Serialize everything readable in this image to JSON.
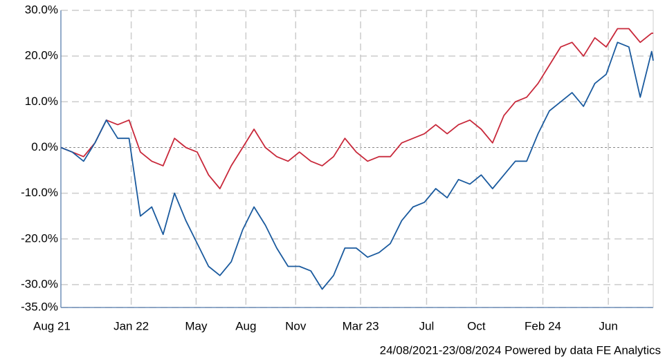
{
  "chart_data": {
    "type": "line",
    "caption": "24/08/2021-23/08/2024 Powered by data FE Analytics",
    "x": [
      "2021-08-24",
      "2021-09-14",
      "2021-10-05",
      "2021-10-26",
      "2021-11-16",
      "2021-12-07",
      "2021-12-28",
      "2022-01-18",
      "2022-02-08",
      "2022-03-01",
      "2022-03-22",
      "2022-04-12",
      "2022-05-03",
      "2022-05-24",
      "2022-06-14",
      "2022-07-05",
      "2022-07-26",
      "2022-08-16",
      "2022-09-06",
      "2022-09-27",
      "2022-10-18",
      "2022-11-08",
      "2022-11-29",
      "2022-12-20",
      "2023-01-10",
      "2023-01-31",
      "2023-02-21",
      "2023-03-14",
      "2023-04-04",
      "2023-04-25",
      "2023-05-16",
      "2023-06-06",
      "2023-06-27",
      "2023-07-18",
      "2023-08-08",
      "2023-08-29",
      "2023-09-19",
      "2023-10-10",
      "2023-10-31",
      "2023-11-21",
      "2023-12-12",
      "2024-01-02",
      "2024-01-23",
      "2024-02-13",
      "2024-03-05",
      "2024-03-26",
      "2024-04-16",
      "2024-05-07",
      "2024-05-28",
      "2024-06-18",
      "2024-07-09",
      "2024-07-30",
      "2024-08-20",
      "2024-08-23"
    ],
    "series": [
      {
        "color": "#c8283a",
        "values": [
          0,
          -1,
          -2,
          1,
          6,
          5,
          6,
          -1,
          -3,
          -4,
          2,
          0,
          -1,
          -6,
          -9,
          -4,
          0,
          4,
          0,
          -2,
          -3,
          -1,
          -3,
          -4,
          -2,
          2,
          -1,
          -3,
          -2,
          -2,
          1,
          2,
          3,
          5,
          3,
          5,
          6,
          4,
          1,
          7,
          10,
          11,
          14,
          18,
          22,
          23,
          20,
          24,
          22,
          26,
          26,
          23,
          25,
          25
        ]
      },
      {
        "color": "#1a5a9e",
        "values": [
          0,
          -1,
          -3,
          1,
          6,
          2,
          2,
          -15,
          -13,
          -19,
          -10,
          -16,
          -21,
          -26,
          -28,
          -25,
          -18,
          -13,
          -17,
          -22,
          -26,
          -26,
          -27,
          -31,
          -28,
          -22,
          -22,
          -24,
          -23,
          -21,
          -16,
          -13,
          -12,
          -9,
          -11,
          -7,
          -8,
          -6,
          -9,
          -6,
          -3,
          -3,
          3,
          8,
          10,
          12,
          9,
          14,
          16,
          23,
          22,
          11,
          21,
          19
        ]
      }
    ],
    "xlim": [
      "2021-08-24",
      "2024-08-23"
    ],
    "xticks": [
      {
        "value": "2021-08-24",
        "label": "Aug 21"
      },
      {
        "value": "2022-01-01",
        "label": "Jan 22"
      },
      {
        "value": "2022-05-01",
        "label": "May"
      },
      {
        "value": "2022-08-01",
        "label": "Aug"
      },
      {
        "value": "2022-11-01",
        "label": "Nov"
      },
      {
        "value": "2023-03-01",
        "label": "Mar 23"
      },
      {
        "value": "2023-07-01",
        "label": "Jul"
      },
      {
        "value": "2023-10-01",
        "label": "Oct"
      },
      {
        "value": "2024-02-01",
        "label": "Feb 24"
      },
      {
        "value": "2024-06-01",
        "label": "Jun"
      }
    ],
    "ylim": [
      -35,
      30
    ],
    "yticks": [
      {
        "value": 30,
        "label": "30.0%"
      },
      {
        "value": 20,
        "label": "20.0%"
      },
      {
        "value": 10,
        "label": "10.0%"
      },
      {
        "value": 0,
        "label": "0.0%"
      },
      {
        "value": -10,
        "label": "-10.0%"
      },
      {
        "value": -20,
        "label": "-20.0%"
      },
      {
        "value": -30,
        "label": "-30.0%"
      },
      {
        "value": -35,
        "label": "-35.0%"
      }
    ],
    "grid": true
  }
}
